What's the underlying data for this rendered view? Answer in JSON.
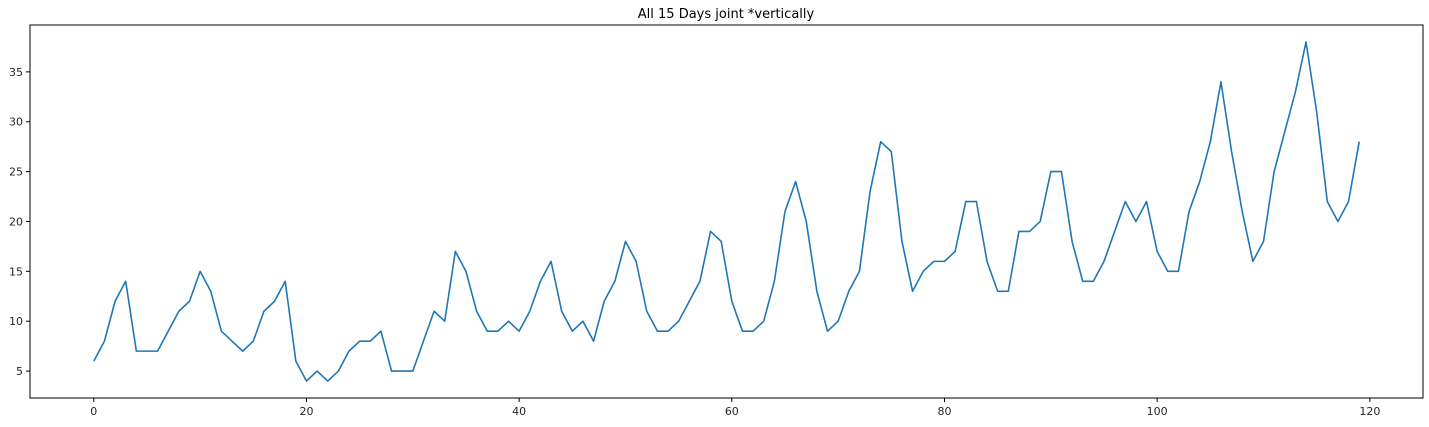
{
  "chart_data": {
    "type": "line",
    "title": "All 15 Days joint *vertically",
    "xlabel": "",
    "ylabel": "",
    "xlim": [
      -6,
      125
    ],
    "ylim": [
      2.3,
      39.7
    ],
    "xticks": [
      0,
      20,
      40,
      60,
      80,
      100,
      120
    ],
    "yticks": [
      5,
      10,
      15,
      20,
      25,
      30,
      35
    ],
    "grid": false,
    "legend": "none",
    "line_color": "#1f77b4",
    "series": [
      {
        "values": [
          6,
          8,
          12,
          14,
          7,
          7,
          7,
          9,
          11,
          12,
          15,
          13,
          9,
          8,
          7,
          8,
          11,
          12,
          14,
          6,
          4,
          5,
          4,
          5,
          7,
          8,
          8,
          9,
          5,
          5,
          5,
          8,
          11,
          10,
          17,
          15,
          11,
          9,
          9,
          10,
          9,
          11,
          14,
          16,
          11,
          9,
          10,
          8,
          12,
          14,
          18,
          16,
          11,
          9,
          9,
          10,
          12,
          14,
          19,
          18,
          12,
          9,
          9,
          10,
          14,
          21,
          24,
          20,
          13,
          9,
          10,
          13,
          15,
          23,
          28,
          27,
          18,
          13,
          15,
          16,
          16,
          17,
          22,
          22,
          16,
          13,
          13,
          19,
          19,
          20,
          25,
          25,
          18,
          14,
          14,
          16,
          19,
          22,
          20,
          22,
          17,
          15,
          15,
          21,
          24,
          28,
          34,
          27,
          21,
          16,
          18,
          25,
          29,
          33,
          38,
          31,
          22,
          20,
          22,
          28
        ]
      }
    ]
  }
}
